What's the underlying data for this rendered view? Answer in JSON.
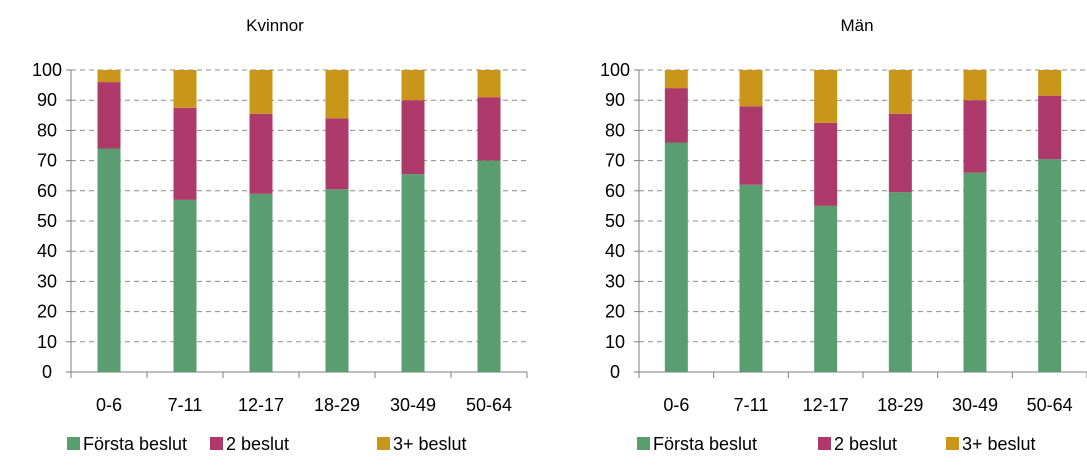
{
  "chart_data": [
    {
      "type": "bar",
      "stacked": true,
      "title": "Kvinnor",
      "categories": [
        "0-6",
        "7-11",
        "12-17",
        "18-29",
        "30-49",
        "50-64"
      ],
      "series": [
        {
          "name": "Första beslut",
          "color": "#5a9e6f",
          "values": [
            74,
            57,
            59,
            60.5,
            65.5,
            70
          ]
        },
        {
          "name": "2 beslut",
          "color": "#ad3a6a",
          "values": [
            22,
            30.5,
            26.5,
            23.5,
            24.5,
            21
          ]
        },
        {
          "name": "3+ beslut",
          "color": "#c9961a",
          "values": [
            4,
            12.5,
            14.5,
            16,
            10,
            9
          ]
        }
      ],
      "ylim": [
        0,
        100
      ],
      "yticks": [
        0,
        10,
        20,
        30,
        40,
        50,
        60,
        70,
        80,
        90,
        100
      ],
      "grid": true,
      "legend": "bottom"
    },
    {
      "type": "bar",
      "stacked": true,
      "title": "Män",
      "categories": [
        "0-6",
        "7-11",
        "12-17",
        "18-29",
        "30-49",
        "50-64"
      ],
      "series": [
        {
          "name": "Första beslut",
          "color": "#5a9e6f",
          "values": [
            76,
            62,
            55,
            59.5,
            66,
            70.5
          ]
        },
        {
          "name": "2 beslut",
          "color": "#ad3a6a",
          "values": [
            18,
            26,
            27.5,
            26,
            24,
            21
          ]
        },
        {
          "name": "3+ beslut",
          "color": "#c9961a",
          "values": [
            6,
            12,
            17.5,
            14.5,
            10,
            8.5
          ]
        }
      ],
      "ylim": [
        0,
        100
      ],
      "yticks": [
        0,
        10,
        20,
        30,
        40,
        50,
        60,
        70,
        80,
        90,
        100
      ],
      "grid": true,
      "legend": "bottom"
    }
  ]
}
